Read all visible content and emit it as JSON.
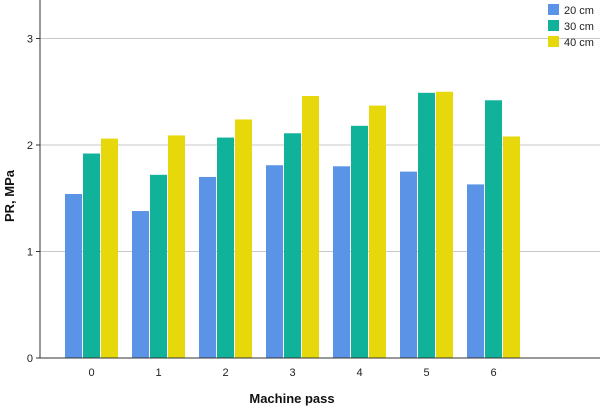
{
  "chart_data": {
    "type": "bar",
    "xlabel": "Machine pass",
    "ylabel": "PR, MPa",
    "categories": [
      "0",
      "1",
      "2",
      "3",
      "4",
      "5",
      "6"
    ],
    "ylim": [
      0,
      3.3
    ],
    "yticks": [
      "0",
      "1",
      "2",
      "3"
    ],
    "grid": "horizontal at major ticks",
    "legend_position": "top-right",
    "series": [
      {
        "name": "20 cm",
        "color": "#5b93e6",
        "values": [
          1.54,
          1.38,
          1.7,
          1.81,
          1.8,
          1.75,
          1.63
        ]
      },
      {
        "name": "30 cm",
        "color": "#10b39a",
        "values": [
          1.92,
          1.72,
          2.07,
          2.11,
          2.18,
          2.49,
          2.42
        ]
      },
      {
        "name": "40 cm",
        "color": "#e6d80a",
        "values": [
          2.06,
          2.09,
          2.24,
          2.46,
          2.37,
          2.5,
          2.08
        ]
      }
    ]
  }
}
